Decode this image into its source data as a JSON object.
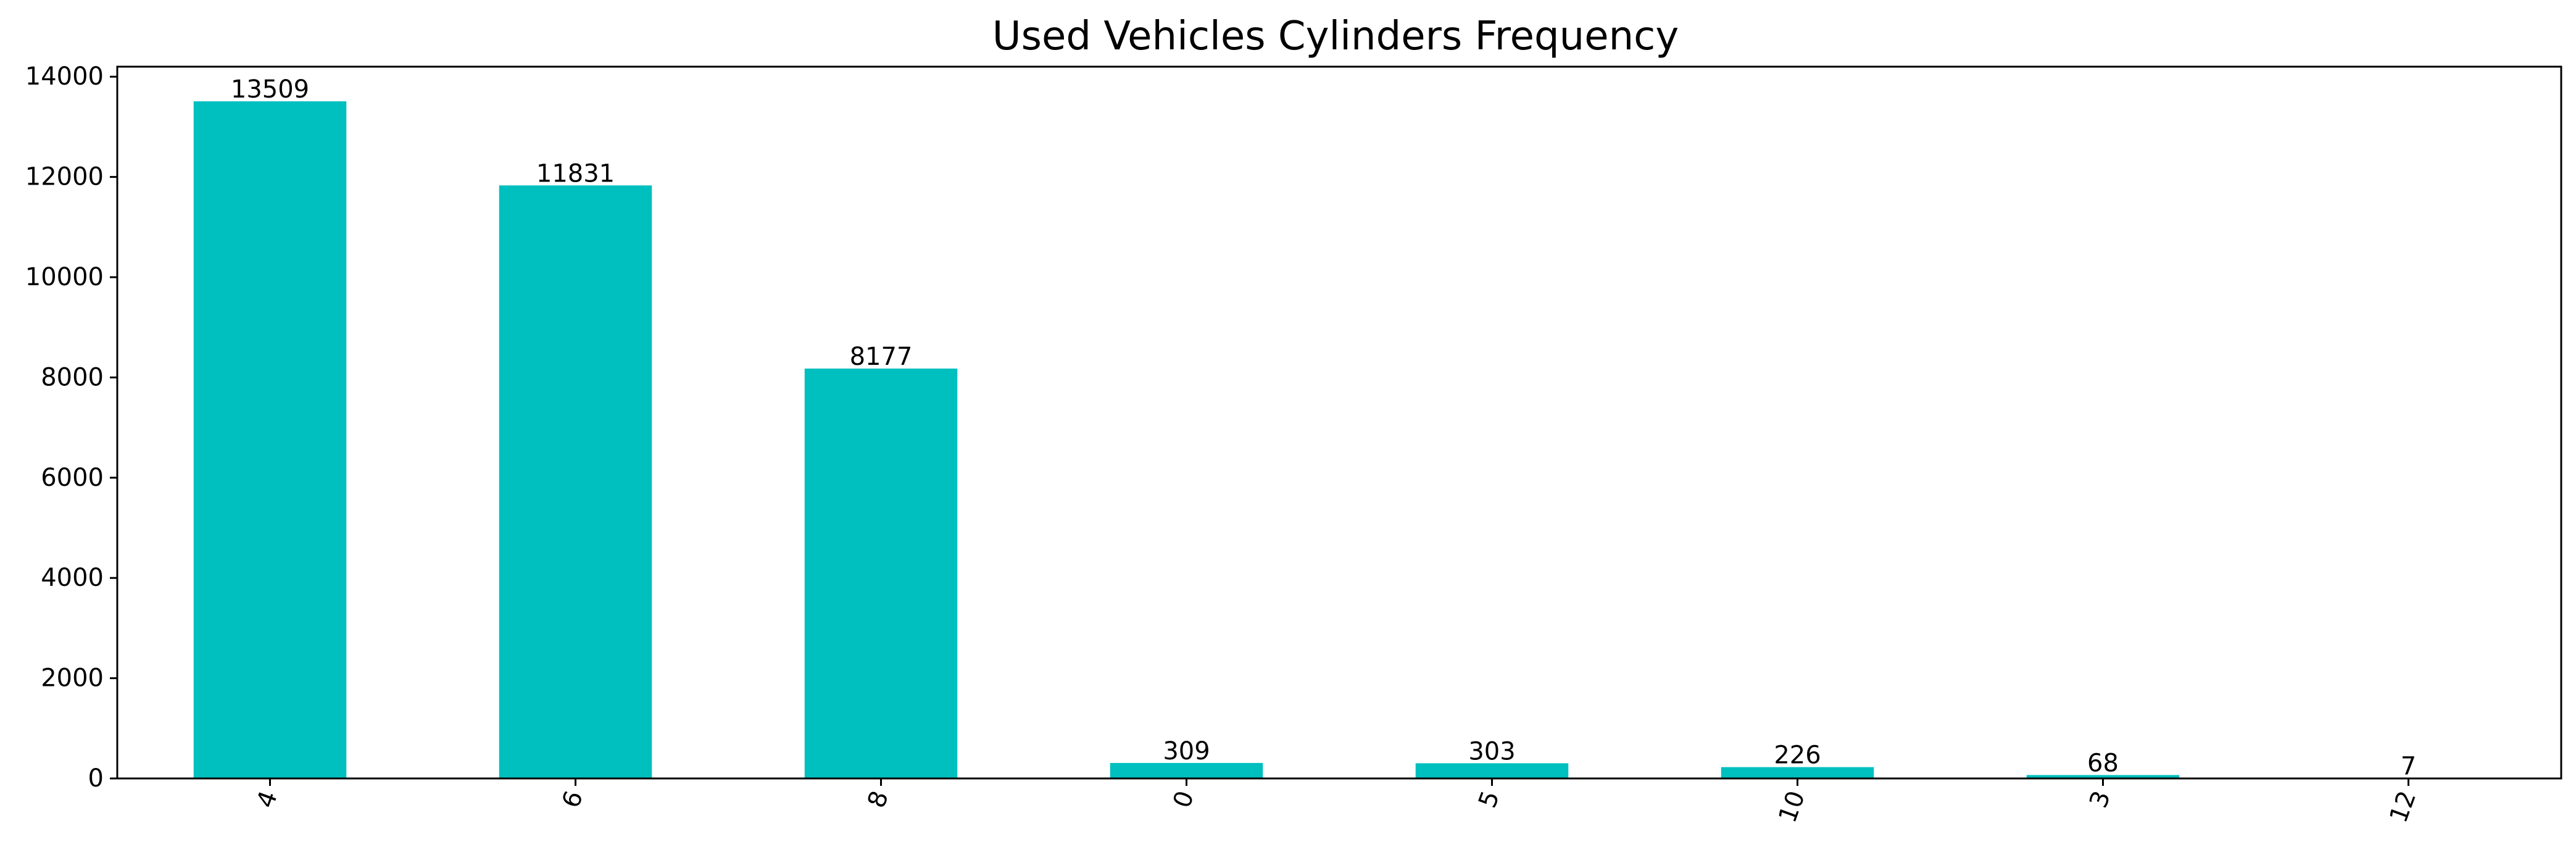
{
  "chart_data": {
    "type": "bar",
    "title": "Used Vehicles Cylinders Frequency",
    "xlabel": "",
    "ylabel": "",
    "categories": [
      "4",
      "6",
      "8",
      "0",
      "5",
      "10",
      "3",
      "12"
    ],
    "values": [
      13509,
      11831,
      8177,
      309,
      303,
      226,
      68,
      7
    ],
    "data_labels": [
      "13509",
      "11831",
      "8177",
      "309",
      "303",
      "226",
      "68",
      "7"
    ],
    "ylim": [
      0,
      14200
    ],
    "yticks": [
      0,
      2000,
      4000,
      6000,
      8000,
      10000,
      12000,
      14000
    ],
    "ytick_labels": [
      "0",
      "2000",
      "4000",
      "6000",
      "8000",
      "10000",
      "12000",
      "14000"
    ],
    "xtick_rotation_deg": 70,
    "grid": false,
    "legend": "none",
    "bar_color": "#00bfbf"
  }
}
